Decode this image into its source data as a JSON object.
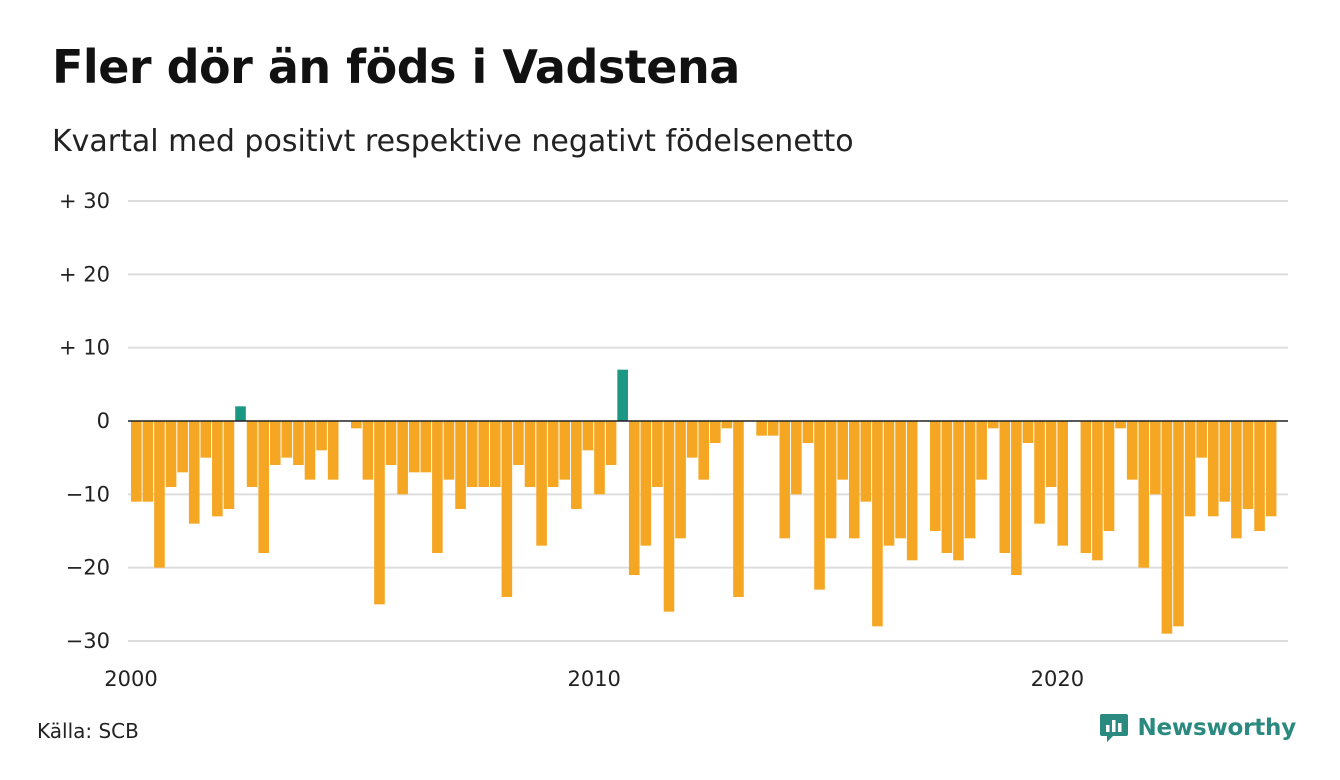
{
  "title": "Fler dör än föds i Vadstena",
  "subtitle": "Kvartal med positivt respektive negativt födelsenetto",
  "source": "Källa: SCB",
  "brand": {
    "name": "Newsworthy",
    "icon": "newsworthy-logo-icon"
  },
  "colors": {
    "positive": "#1b9784",
    "negative": "#f5a623",
    "grid": "#dddddd",
    "zero_line": "#222222",
    "brand": "#2a8a80"
  },
  "chart_data": {
    "type": "bar",
    "title": "Fler dör än föds i Vadstena",
    "subtitle": "Kvartal med positivt respektive negativt födelsenetto",
    "x_start": "2000-Q1",
    "frequency": "quarterly",
    "x_ticks": [
      {
        "label": "2000",
        "quarter_index": 0
      },
      {
        "label": "2010",
        "quarter_index": 40
      },
      {
        "label": "2020",
        "quarter_index": 80
      }
    ],
    "ylim": [
      -30,
      30
    ],
    "y_ticks": [
      {
        "value": 30,
        "label": "+ 30"
      },
      {
        "value": 20,
        "label": "+ 20"
      },
      {
        "value": 10,
        "label": "+ 10"
      },
      {
        "value": 0,
        "label": "0"
      },
      {
        "value": -10,
        "label": "−10"
      },
      {
        "value": -20,
        "label": "−20"
      },
      {
        "value": -30,
        "label": "−30"
      }
    ],
    "grid": true,
    "values": [
      -11,
      -11,
      -20,
      -9,
      -7,
      -14,
      -5,
      -13,
      -12,
      2,
      -9,
      -18,
      -6,
      -5,
      -6,
      -8,
      -4,
      -8,
      0,
      -1,
      -8,
      -25,
      -6,
      -10,
      -7,
      -7,
      -18,
      -8,
      -12,
      -9,
      -9,
      -9,
      -24,
      -6,
      -9,
      -17,
      -9,
      -8,
      -12,
      -4,
      -10,
      -6,
      7,
      -21,
      -17,
      -9,
      -26,
      -16,
      -5,
      -8,
      -3,
      -1,
      -24,
      0,
      -2,
      -2,
      -16,
      -10,
      -3,
      -23,
      -16,
      -8,
      -16,
      -11,
      -28,
      -17,
      -16,
      -19,
      0,
      -15,
      -18,
      -19,
      -16,
      -8,
      -1,
      -18,
      -21,
      -3,
      -14,
      -9,
      -17,
      0,
      -18,
      -19,
      -15,
      -1,
      -8,
      -20,
      -10,
      -29,
      -28,
      -13,
      -5,
      -13,
      -11,
      -16,
      -12,
      -15,
      -13
    ]
  }
}
